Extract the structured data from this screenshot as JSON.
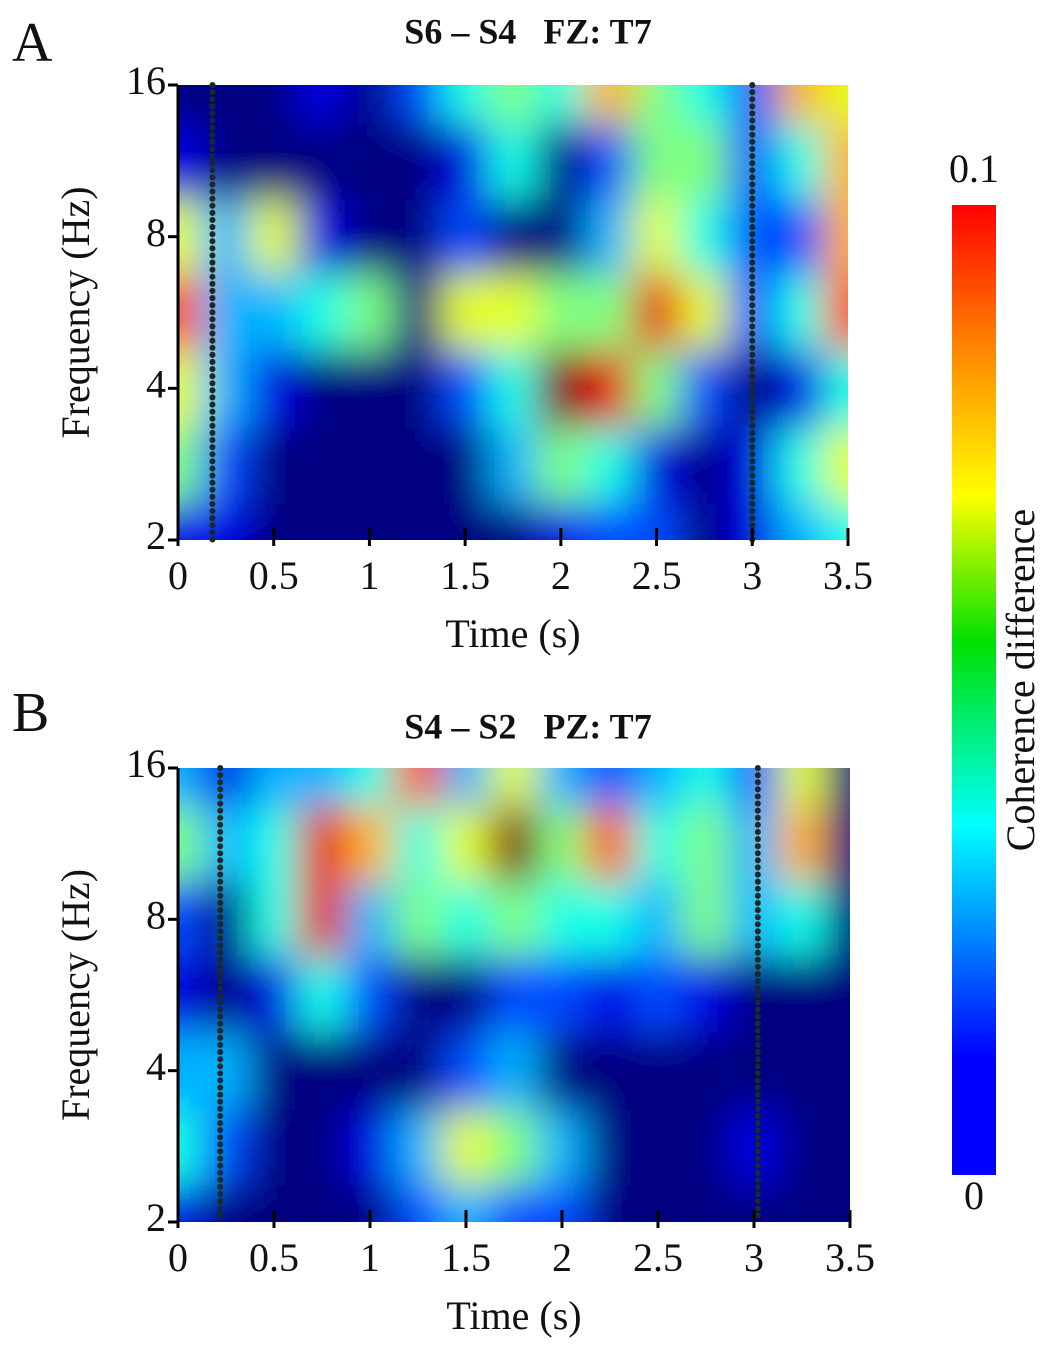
{
  "chart_data": [
    {
      "type": "heatmap",
      "panel": "A",
      "title": "S6 – S4   FZ: T7",
      "xlabel": "Time (s)",
      "ylabel": "Frequency (Hz)",
      "x": [
        0,
        0.25,
        0.5,
        0.75,
        1,
        1.25,
        1.5,
        1.75,
        2,
        2.25,
        2.5,
        2.75,
        3,
        3.25,
        3.5
      ],
      "y": [
        2,
        2.8,
        4,
        5.7,
        8,
        11.3,
        16
      ],
      "values": [
        [
          0.01,
          0.01,
          0,
          0,
          0,
          0,
          0,
          0,
          0.01,
          0.02,
          0.02,
          0,
          0.01,
          0.03,
          0.04
        ],
        [
          0.05,
          0.02,
          0,
          0,
          0,
          0,
          0,
          0.03,
          0.05,
          0.04,
          0.01,
          0,
          0.01,
          0.04,
          0.06
        ],
        [
          0.06,
          0.03,
          0.01,
          0,
          0,
          0,
          0.02,
          0.04,
          0.1,
          0.09,
          0.05,
          0.02,
          0,
          0.01,
          0.04
        ],
        [
          0.08,
          0.03,
          0.03,
          0.04,
          0.05,
          0,
          0.06,
          0.06,
          0.05,
          0.05,
          0.09,
          0.06,
          0.02,
          0.04,
          0.08
        ],
        [
          0.06,
          0.03,
          0.06,
          0.01,
          0,
          0,
          0.02,
          0,
          0,
          0.03,
          0.06,
          0.04,
          0.02,
          0.02,
          0.07
        ],
        [
          0.01,
          0,
          0,
          0,
          0,
          0,
          0.01,
          0.04,
          0,
          0.02,
          0.05,
          0.05,
          0.02,
          0.04,
          0.07
        ],
        [
          0,
          0,
          0,
          0.01,
          0,
          0.02,
          0.04,
          0.05,
          0.04,
          0.07,
          0.05,
          0.04,
          0.02,
          0.07,
          0.06
        ]
      ],
      "markers_x": [
        0.18,
        3.0
      ],
      "xlim": [
        0,
        3.5
      ],
      "xticks": [
        0,
        0.5,
        1,
        1.5,
        2,
        2.5,
        3,
        3.5
      ],
      "ylim": [
        2,
        16
      ],
      "yticks": [
        2,
        4,
        8,
        16
      ],
      "yscale": "log"
    },
    {
      "type": "heatmap",
      "panel": "B",
      "title": "S4 – S2   PZ: T7",
      "xlabel": "Time (s)",
      "ylabel": "Frequency (Hz)",
      "x": [
        0,
        0.25,
        0.5,
        0.75,
        1,
        1.25,
        1.5,
        1.75,
        2,
        2.25,
        2.5,
        2.75,
        3,
        3.25,
        3.5
      ],
      "y": [
        2,
        2.8,
        4,
        5.7,
        8,
        11.3,
        16
      ],
      "values": [
        [
          0.01,
          0,
          0,
          0,
          0,
          0.02,
          0.03,
          0.02,
          0.02,
          0,
          0,
          0,
          0,
          0,
          0
        ],
        [
          0.04,
          0.02,
          0,
          0,
          0.01,
          0.03,
          0.06,
          0.05,
          0.03,
          0,
          0,
          0,
          0.01,
          0,
          0
        ],
        [
          0.03,
          0.03,
          0,
          0,
          0,
          0,
          0.02,
          0.03,
          0,
          0,
          0,
          0,
          0,
          0,
          0
        ],
        [
          0.01,
          0,
          0.01,
          0.04,
          0.02,
          0,
          0,
          0.02,
          0.02,
          0.01,
          0.02,
          0.01,
          0,
          0,
          0
        ],
        [
          0.02,
          0,
          0.04,
          0.09,
          0.03,
          0.05,
          0.04,
          0.05,
          0.04,
          0.04,
          0.03,
          0.05,
          0.03,
          0.04,
          0
        ],
        [
          0.05,
          0.03,
          0.04,
          0.09,
          0.07,
          0.04,
          0.06,
          0.1,
          0.05,
          0.08,
          0.04,
          0.05,
          0.03,
          0.07,
          0
        ],
        [
          0.03,
          0.01,
          0.03,
          0.03,
          0.04,
          0.08,
          0.03,
          0.06,
          0.03,
          0.02,
          0.03,
          0.04,
          0.02,
          0.06,
          0
        ]
      ],
      "markers_x": [
        0.22,
        3.02
      ],
      "xlim": [
        0,
        3.5
      ],
      "xticks": [
        0,
        0.5,
        1,
        1.5,
        2,
        2.5,
        3,
        3.5
      ],
      "ylim": [
        2,
        16
      ],
      "yticks": [
        2,
        4,
        8,
        16
      ],
      "yscale": "log"
    }
  ],
  "colorbar": {
    "label": "Coherence difference",
    "lim": [
      0,
      0.1
    ],
    "ticks": [
      0,
      0.1
    ],
    "colormap": "jet"
  }
}
